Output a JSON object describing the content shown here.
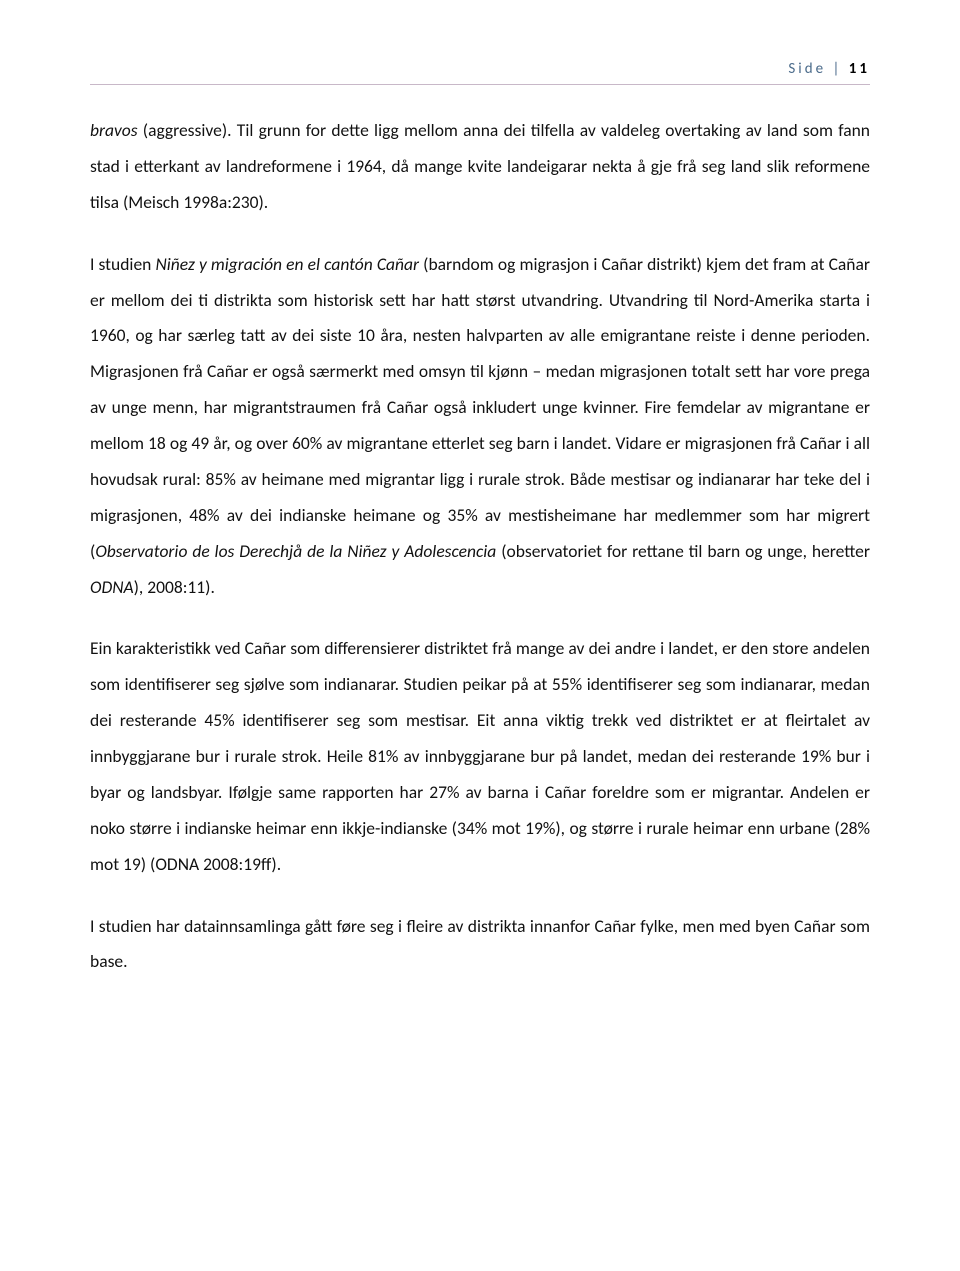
{
  "header": {
    "label": "Side",
    "separator": "|",
    "page_number": "11"
  },
  "paragraphs": {
    "p1_a": "bravos",
    "p1_b": " (aggressive). Til grunn for dette ligg mellom anna dei tilfella av valdeleg overtaking av land som fann stad i etterkant av landreformene i 1964, då mange kvite landeigarar nekta å gje frå seg land slik reformene tilsa (Meisch 1998a:230).",
    "p2_a": "I studien ",
    "p2_b": "Niñez y migración en el cantón Cañar",
    "p2_c": " (barndom og migrasjon i Cañar distrikt) kjem det fram at Cañar er mellom dei ti distrikta som historisk sett har hatt størst utvandring. Utvandring til Nord-Amerika starta i 1960, og har særleg tatt av dei siste 10 åra, nesten halvparten av alle emigrantane reiste i denne perioden. Migrasjonen frå Cañar er også særmerkt med omsyn til kjønn – medan migrasjonen totalt sett har vore prega av unge menn, har migrantstraumen frå Cañar også inkludert unge kvinner. Fire femdelar av migrantane er mellom 18 og 49 år, og over 60% av migrantane etterlet seg barn i landet. Vidare er migrasjonen frå Cañar i all hovudsak rural: 85% av heimane med migrantar ligg i rurale strok. Både mestisar og indianarar har teke del i migrasjonen, 48% av dei indianske heimane og 35% av mestisheimane har medlemmer som har migrert (",
    "p2_d": "Observatorio de los Derechjå de la Niñez y Adolescencia",
    "p2_e": " (observatoriet for rettane til barn og unge, heretter ",
    "p2_f": "ODNA",
    "p2_g": "), 2008:11).",
    "p3": "Ein karakteristikk ved Cañar som differensierer distriktet frå mange av dei andre i landet, er den store andelen som identifiserer seg sjølve som indianarar. Studien peikar på at 55% identifiserer seg som indianarar, medan dei resterande 45% identifiserer seg som mestisar. Eit anna viktig trekk ved distriktet er at fleirtalet av innbyggjarane bur i rurale strok. Heile 81% av innbyggjarane bur på landet, medan dei resterande 19% bur i byar og landsbyar. Ifølgje same rapporten har 27% av barna i Cañar foreldre som er migrantar. Andelen er noko større i indianske heimar enn ikkje-indianske (34% mot 19%), og større i rurale heimar enn urbane (28% mot 19) (ODNA 2008:19ff).",
    "p4": "I studien har datainnsamlinga gått føre seg i fleire av distrikta innanfor Cañar fylke, men med byen Cañar som base."
  }
}
